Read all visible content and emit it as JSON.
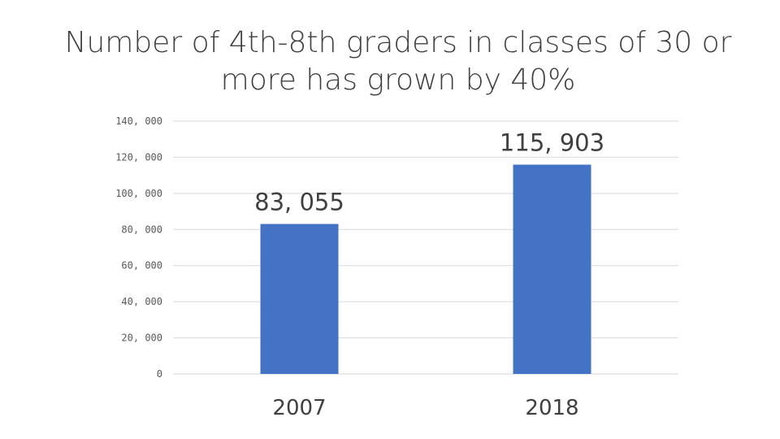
{
  "chart_data": {
    "type": "bar",
    "title": "Number of 4th-8th graders in classes of 30 or more has grown by 40%",
    "xlabel": "",
    "ylabel": "",
    "categories": [
      "2007",
      "2018"
    ],
    "values": [
      83055,
      115903
    ],
    "data_labels": [
      "83, 055",
      "115, 903"
    ],
    "ylim": [
      0,
      140000
    ],
    "yticks": [
      0,
      20000,
      40000,
      60000,
      80000,
      100000,
      120000,
      140000
    ],
    "ytick_labels": [
      "0",
      "20, 000",
      "40, 000",
      "60, 000",
      "80, 000",
      "100, 000",
      "120, 000",
      "140, 000"
    ],
    "grid": true,
    "legend": "none",
    "bar_color": "#4472C4",
    "grid_color": "#d9d9d9"
  }
}
